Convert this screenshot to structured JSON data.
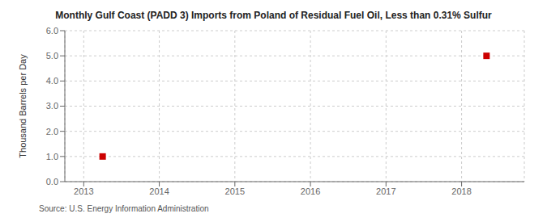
{
  "chart_data": {
    "type": "scatter",
    "title": "Monthly Gulf Coast (PADD 3) Imports from Poland of Residual Fuel Oil, Less than 0.31% Sulfur",
    "ylabel": "Thousand Barrels per Day",
    "annotations": [
      "Source: U.S. Energy Information Administration"
    ],
    "x": [
      2013.25,
      2018.33
    ],
    "values": [
      1.0,
      5.0
    ],
    "color": "#cc0000",
    "marker": "square",
    "xlim": [
      2012.75,
      2018.83
    ],
    "ylim": [
      0.0,
      6.0
    ],
    "xticks": [
      2013,
      2014,
      2015,
      2016,
      2017,
      2018
    ],
    "yticks": [
      {
        "value": 0.0,
        "label": "0.0"
      },
      {
        "value": 1.0,
        "label": "1.0"
      },
      {
        "value": 2.0,
        "label": "2.0"
      },
      {
        "value": 3.0,
        "label": "3.0"
      },
      {
        "value": 4.0,
        "label": "4.0"
      },
      {
        "value": 5.0,
        "label": "5.0"
      },
      {
        "value": 6.0,
        "label": "6.0"
      }
    ],
    "grid": true
  }
}
